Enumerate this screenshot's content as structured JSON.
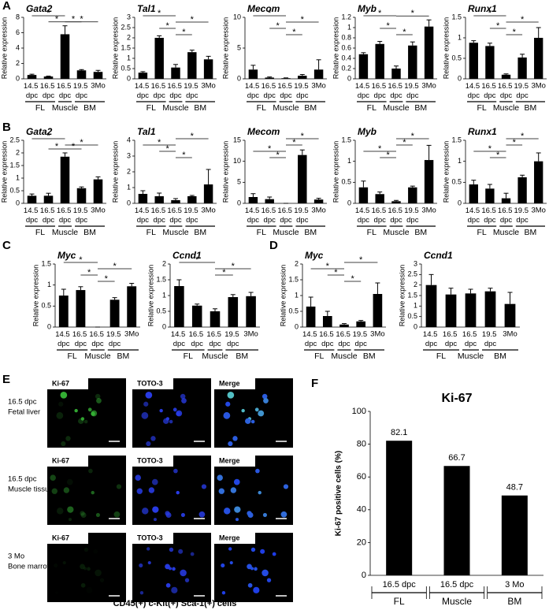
{
  "panel_labels": [
    "A",
    "B",
    "C",
    "D",
    "E",
    "F"
  ],
  "chart_data": [
    {
      "type": "bar",
      "title": "Gata2",
      "ylabel": "Relative expression",
      "wrap_categories": true,
      "color": "#000000",
      "categories": [
        "14.5 dpc",
        "16.5 dpc",
        "16.5 dpc",
        "19.5 dpc",
        "3Mo"
      ],
      "values": [
        0.5,
        0.3,
        5.8,
        1.1,
        0.9
      ],
      "errors": [
        0.1,
        0.05,
        1.1,
        0.1,
        0.2
      ],
      "ylim": [
        0,
        8
      ],
      "yticks": [
        0,
        2,
        4,
        6,
        8
      ],
      "groups": [
        {
          "label": "FL",
          "from": 0,
          "to": 1
        },
        {
          "label": "Muscle",
          "from": 2,
          "to": 2
        },
        {
          "label": "BM",
          "from": 3,
          "to": 4
        }
      ],
      "brackets": [
        {
          "from": 0,
          "to": 2,
          "label": "*"
        },
        {
          "from": 2,
          "to": 4,
          "label": "*"
        },
        {
          "from": 1,
          "to": 2,
          "label": "*"
        },
        {
          "from": 2,
          "to": 3,
          "label": "*"
        }
      ]
    },
    {
      "type": "bar",
      "title": "Tal1",
      "ylabel": "Relative expression",
      "wrap_categories": true,
      "color": "#000000",
      "categories": [
        "14.5 dpc",
        "16.5 dpc",
        "16.5 dpc",
        "19.5 dpc",
        "3Mo"
      ],
      "values": [
        0.3,
        2.0,
        0.55,
        1.3,
        0.95
      ],
      "errors": [
        0.05,
        0.1,
        0.15,
        0.1,
        0.15
      ],
      "ylim": [
        0,
        3
      ],
      "yticks": [
        0,
        0.5,
        1,
        1.5,
        2,
        2.5,
        3
      ],
      "groups": [
        {
          "label": "FL",
          "from": 0,
          "to": 1
        },
        {
          "label": "Muscle",
          "from": 2,
          "to": 2
        },
        {
          "label": "BM",
          "from": 3,
          "to": 4
        }
      ],
      "brackets": [
        {
          "from": 0,
          "to": 2,
          "label": "*"
        },
        {
          "from": 2,
          "to": 4,
          "label": "*"
        },
        {
          "from": 1,
          "to": 2,
          "label": "*"
        },
        {
          "from": 2,
          "to": 3,
          "label": "*"
        }
      ]
    },
    {
      "type": "bar",
      "title": "Mecom",
      "ylabel": "Relative expression",
      "wrap_categories": true,
      "color": "#000000",
      "categories": [
        "14.5 dpc",
        "16.5 dpc",
        "16.5 dpc",
        "19.5 dpc",
        "3Mo"
      ],
      "values": [
        1.5,
        0.2,
        0.1,
        0.5,
        1.5
      ],
      "errors": [
        0.7,
        0.1,
        0.05,
        0.2,
        1.6
      ],
      "ylim": [
        0,
        10
      ],
      "yticks": [
        0,
        5,
        10
      ],
      "groups": [
        {
          "label": "FL",
          "from": 0,
          "to": 1
        },
        {
          "label": "Muscle",
          "from": 2,
          "to": 2
        },
        {
          "label": "BM",
          "from": 3,
          "to": 4
        }
      ],
      "brackets": [
        {
          "from": 0,
          "to": 2,
          "label": "*"
        },
        {
          "from": 2,
          "to": 4,
          "label": "*"
        },
        {
          "from": 1,
          "to": 2,
          "label": "*"
        },
        {
          "from": 2,
          "to": 3,
          "label": "*"
        }
      ]
    },
    {
      "type": "bar",
      "title": "Myb",
      "ylabel": "Relative expression",
      "wrap_categories": true,
      "color": "#000000",
      "categories": [
        "14.5 dpc",
        "16.5 dpc",
        "16.5 dpc",
        "19.5 dpc",
        "3Mo"
      ],
      "values": [
        0.48,
        0.68,
        0.2,
        0.65,
        1.02
      ],
      "errors": [
        0.03,
        0.05,
        0.05,
        0.07,
        0.13
      ],
      "ylim": [
        0,
        1.2
      ],
      "yticks": [
        0,
        0.2,
        0.4,
        0.6,
        0.8,
        1,
        1.2
      ],
      "groups": [
        {
          "label": "FL",
          "from": 0,
          "to": 1
        },
        {
          "label": "Muscle",
          "from": 2,
          "to": 2
        },
        {
          "label": "BM",
          "from": 3,
          "to": 4
        }
      ],
      "brackets": [
        {
          "from": 0,
          "to": 2,
          "label": "*"
        },
        {
          "from": 2,
          "to": 4,
          "label": "*"
        },
        {
          "from": 1,
          "to": 2,
          "label": "*"
        },
        {
          "from": 2,
          "to": 3,
          "label": "*"
        }
      ]
    },
    {
      "type": "bar",
      "title": "Runx1",
      "ylabel": "Relative expression",
      "wrap_categories": true,
      "color": "#000000",
      "categories": [
        "14.5 dpc",
        "16.5 dpc",
        "16.5 dpc",
        "19.5 dpc",
        "3Mo"
      ],
      "values": [
        0.88,
        0.8,
        0.1,
        0.52,
        1.0
      ],
      "errors": [
        0.05,
        0.07,
        0.02,
        0.08,
        0.25
      ],
      "ylim": [
        0,
        1.5
      ],
      "yticks": [
        0,
        0.5,
        1,
        1.5
      ],
      "groups": [
        {
          "label": "FL",
          "from": 0,
          "to": 1
        },
        {
          "label": "Muscle",
          "from": 2,
          "to": 2
        },
        {
          "label": "BM",
          "from": 3,
          "to": 4
        }
      ],
      "brackets": [
        {
          "from": 0,
          "to": 2,
          "label": "*"
        },
        {
          "from": 2,
          "to": 4,
          "label": "*"
        },
        {
          "from": 1,
          "to": 2,
          "label": "*"
        },
        {
          "from": 2,
          "to": 3,
          "label": "*"
        }
      ]
    },
    {
      "type": "bar",
      "title": "Gata2",
      "ylabel": "Relative expression",
      "wrap_categories": true,
      "color": "#000000",
      "categories": [
        "14.5 dpc",
        "16.5 dpc",
        "16.5 dpc",
        "19.5 dpc",
        "3Mo"
      ],
      "values": [
        0.3,
        0.3,
        1.85,
        0.6,
        0.95
      ],
      "errors": [
        0.07,
        0.1,
        0.15,
        0.05,
        0.1
      ],
      "ylim": [
        0,
        2.5
      ],
      "yticks": [
        0,
        0.5,
        1,
        1.5,
        2,
        2.5
      ],
      "groups": [
        {
          "label": "FL",
          "from": 0,
          "to": 1
        },
        {
          "label": "Muscle",
          "from": 2,
          "to": 2
        },
        {
          "label": "BM",
          "from": 3,
          "to": 4
        }
      ],
      "brackets": [
        {
          "from": 0,
          "to": 2,
          "label": "*"
        },
        {
          "from": 2,
          "to": 4,
          "label": "*"
        },
        {
          "from": 1,
          "to": 2,
          "label": "*"
        },
        {
          "from": 2,
          "to": 3,
          "label": "*"
        }
      ]
    },
    {
      "type": "bar",
      "title": "Tal1",
      "ylabel": "Relative expression",
      "wrap_categories": true,
      "color": "#000000",
      "categories": [
        "14.5 dpc",
        "16.5 dpc",
        "16.5 dpc",
        "19.5 dpc",
        "3Mo"
      ],
      "values": [
        0.6,
        0.45,
        0.2,
        0.45,
        1.2
      ],
      "errors": [
        0.2,
        0.2,
        0.1,
        0.05,
        0.95
      ],
      "ylim": [
        0,
        4
      ],
      "yticks": [
        0,
        1,
        2,
        3,
        4
      ],
      "groups": [
        {
          "label": "FL",
          "from": 0,
          "to": 1
        },
        {
          "label": "Muscle",
          "from": 2,
          "to": 2
        },
        {
          "label": "BM",
          "from": 3,
          "to": 4
        }
      ],
      "brackets": [
        {
          "from": 2,
          "to": 4,
          "label": "*"
        },
        {
          "from": 0,
          "to": 2,
          "label": "*"
        },
        {
          "from": 1,
          "to": 2,
          "label": "*"
        },
        {
          "from": 2,
          "to": 3,
          "label": "*"
        }
      ]
    },
    {
      "type": "bar",
      "title": "Mecom",
      "ylabel": "Relative expression",
      "wrap_categories": true,
      "color": "#000000",
      "categories": [
        "14.5 dpc",
        "16.5 dpc",
        "16.5 dpc",
        "19.5 dpc",
        "3Mo"
      ],
      "values": [
        1.5,
        1.0,
        0,
        11.5,
        0.9
      ],
      "errors": [
        0.8,
        0.5,
        0,
        1.2,
        0.3
      ],
      "ylim": [
        0,
        15
      ],
      "yticks": [
        0,
        5,
        10,
        15
      ],
      "groups": [
        {
          "label": "FL",
          "from": 0,
          "to": 1
        },
        {
          "label": "Muscle",
          "from": 2,
          "to": 2
        },
        {
          "label": "BM",
          "from": 3,
          "to": 4
        }
      ],
      "brackets": [
        {
          "from": 2,
          "to": 4,
          "label": "*"
        },
        {
          "from": 2,
          "to": 3,
          "label": "*"
        },
        {
          "from": 0,
          "to": 2,
          "label": "*"
        },
        {
          "from": 1,
          "to": 2,
          "label": "*"
        }
      ]
    },
    {
      "type": "bar",
      "title": "Myb",
      "ylabel": "Relative expression",
      "wrap_categories": true,
      "color": "#000000",
      "categories": [
        "14.5 dpc",
        "16.5 dpc",
        "16.5 dpc",
        "19.5 dpc",
        "3Mo"
      ],
      "values": [
        0.38,
        0.22,
        0.05,
        0.38,
        1.03
      ],
      "errors": [
        0.15,
        0.05,
        0.02,
        0.03,
        0.35
      ],
      "ylim": [
        0,
        1.5
      ],
      "yticks": [
        0,
        0.5,
        1,
        1.5
      ],
      "groups": [
        {
          "label": "FL",
          "from": 0,
          "to": 1
        },
        {
          "label": "Muscle",
          "from": 2,
          "to": 2
        },
        {
          "label": "BM",
          "from": 3,
          "to": 4
        }
      ],
      "brackets": [
        {
          "from": 2,
          "to": 4,
          "label": "*"
        },
        {
          "from": 2,
          "to": 3,
          "label": "*"
        },
        {
          "from": 0,
          "to": 2,
          "label": "*"
        },
        {
          "from": 1,
          "to": 2,
          "label": "*"
        }
      ]
    },
    {
      "type": "bar",
      "title": "Runx1",
      "ylabel": "Relative expression",
      "wrap_categories": true,
      "color": "#000000",
      "categories": [
        "14.5 dpc",
        "16.5 dpc",
        "16.5 dpc",
        "19.5 dpc",
        "3Mo"
      ],
      "values": [
        0.45,
        0.35,
        0.12,
        0.62,
        1.0
      ],
      "errors": [
        0.1,
        0.1,
        0.12,
        0.05,
        0.2
      ],
      "ylim": [
        0,
        1.5
      ],
      "yticks": [
        0,
        0.5,
        1,
        1.5
      ],
      "groups": [
        {
          "label": "FL",
          "from": 0,
          "to": 1
        },
        {
          "label": "Muscle",
          "from": 2,
          "to": 2
        },
        {
          "label": "BM",
          "from": 3,
          "to": 4
        }
      ],
      "brackets": [
        {
          "from": 2,
          "to": 4,
          "label": "*"
        },
        {
          "from": 2,
          "to": 3,
          "label": "*"
        },
        {
          "from": 0,
          "to": 2,
          "label": "*"
        },
        {
          "from": 1,
          "to": 2,
          "label": "*"
        }
      ]
    },
    {
      "type": "bar",
      "title": "Myc",
      "ylabel": "Relative expression",
      "wrap_categories": true,
      "color": "#000000",
      "categories": [
        "14.5 dpc",
        "16.5 dpc",
        "16.5 dpc",
        "19.5 dpc",
        "3Mo"
      ],
      "values": [
        0.75,
        0.88,
        0.0,
        0.65,
        0.97
      ],
      "errors": [
        0.15,
        0.08,
        0,
        0.05,
        0.07
      ],
      "ylim": [
        0,
        1.5
      ],
      "yticks": [
        0,
        0.5,
        1,
        1.5
      ],
      "groups": [
        {
          "label": "FL",
          "from": 0,
          "to": 1
        },
        {
          "label": "Muscle",
          "from": 2,
          "to": 2
        },
        {
          "label": "BM",
          "from": 3,
          "to": 4
        }
      ],
      "brackets": [
        {
          "from": 0,
          "to": 2,
          "label": "*"
        },
        {
          "from": 2,
          "to": 4,
          "label": "*"
        },
        {
          "from": 1,
          "to": 2,
          "label": "*"
        },
        {
          "from": 2,
          "to": 3,
          "label": "*"
        }
      ]
    },
    {
      "type": "bar",
      "title": "Ccnd1",
      "ylabel": "Relative expression",
      "wrap_categories": true,
      "color": "#000000",
      "categories": [
        "14.5 dpc",
        "16.5 dpc",
        "16.5 dpc",
        "19.5 dpc",
        "3Mo"
      ],
      "values": [
        1.3,
        0.68,
        0.5,
        0.95,
        0.98
      ],
      "errors": [
        0.2,
        0.05,
        0.08,
        0.08,
        0.12
      ],
      "ylim": [
        0,
        2
      ],
      "yticks": [
        0,
        0.5,
        1,
        1.5,
        2
      ],
      "groups": [
        {
          "label": "FL",
          "from": 0,
          "to": 1
        },
        {
          "label": "Muscle",
          "from": 2,
          "to": 2
        },
        {
          "label": "BM",
          "from": 3,
          "to": 4
        }
      ],
      "brackets": [
        {
          "from": 0,
          "to": 2,
          "label": "*"
        },
        {
          "from": 2,
          "to": 4,
          "label": "*"
        },
        {
          "from": 2,
          "to": 3,
          "label": "*"
        }
      ]
    },
    {
      "type": "bar",
      "title": "Myc",
      "ylabel": "Relative expression",
      "wrap_categories": true,
      "color": "#000000",
      "categories": [
        "14.5 dpc",
        "16.5 dpc",
        "16.5 dpc",
        "19.5 dpc",
        "3Mo"
      ],
      "values": [
        0.65,
        0.35,
        0.08,
        0.18,
        1.05
      ],
      "errors": [
        0.3,
        0.15,
        0.03,
        0.03,
        0.35
      ],
      "ylim": [
        0,
        2
      ],
      "yticks": [
        0,
        0.5,
        1,
        1.5,
        2
      ],
      "groups": [
        {
          "label": "FL",
          "from": 0,
          "to": 1
        },
        {
          "label": "Muscle",
          "from": 2,
          "to": 2
        },
        {
          "label": "BM",
          "from": 3,
          "to": 4
        }
      ],
      "brackets": [
        {
          "from": 2,
          "to": 4,
          "label": "*"
        },
        {
          "from": 0,
          "to": 2,
          "label": "*"
        },
        {
          "from": 1,
          "to": 2,
          "label": "*"
        },
        {
          "from": 2,
          "to": 3,
          "label": "*"
        }
      ]
    },
    {
      "type": "bar",
      "title": "Ccnd1",
      "ylabel": "Relative expression",
      "wrap_categories": true,
      "color": "#000000",
      "categories": [
        "14.5 dpc",
        "16.5 dpc",
        "16.5 dpc",
        "19.5 dpc",
        "3Mo"
      ],
      "values": [
        2.0,
        1.55,
        1.6,
        1.7,
        1.1
      ],
      "errors": [
        0.5,
        0.3,
        0.2,
        0.15,
        0.55
      ],
      "ylim": [
        0,
        3
      ],
      "yticks": [
        0,
        0.5,
        1,
        1.5,
        2,
        2.5,
        3
      ],
      "groups": [
        {
          "label": "FL",
          "from": 0,
          "to": 1
        },
        {
          "label": "Muscle",
          "from": 2,
          "to": 2
        },
        {
          "label": "BM",
          "from": 3,
          "to": 4
        }
      ],
      "brackets": []
    },
    {
      "type": "bar",
      "title": "Ki-67",
      "ylabel": "Ki-67 positive cells (%)",
      "wrap_categories": false,
      "show_values": true,
      "color": "#000000",
      "categories": [
        "16.5 dpc",
        "16.5 dpc",
        "3 Mo"
      ],
      "values": [
        82.1,
        66.7,
        48.7
      ],
      "ylim": [
        0,
        100
      ],
      "yticks": [
        0,
        20,
        40,
        60,
        80,
        100
      ],
      "groups": [
        {
          "label": "FL",
          "from": 0,
          "to": 0
        },
        {
          "label": "Muscle",
          "from": 1,
          "to": 1
        },
        {
          "label": "BM",
          "from": 2,
          "to": 2
        }
      ],
      "brackets": []
    }
  ],
  "microscopy": {
    "channels": [
      "Ki-67",
      "TOTO-3",
      "Merge"
    ],
    "rows": [
      {
        "label": [
          "16.5 dpc",
          "Fetal liver"
        ]
      },
      {
        "label": [
          "16.5 dpc",
          "Muscle tissue"
        ]
      },
      {
        "label": [
          "3 Mo",
          "Bone marrow"
        ]
      }
    ],
    "caption": "CD45(+) c-Kit(+) Sca-1(+) cells"
  }
}
